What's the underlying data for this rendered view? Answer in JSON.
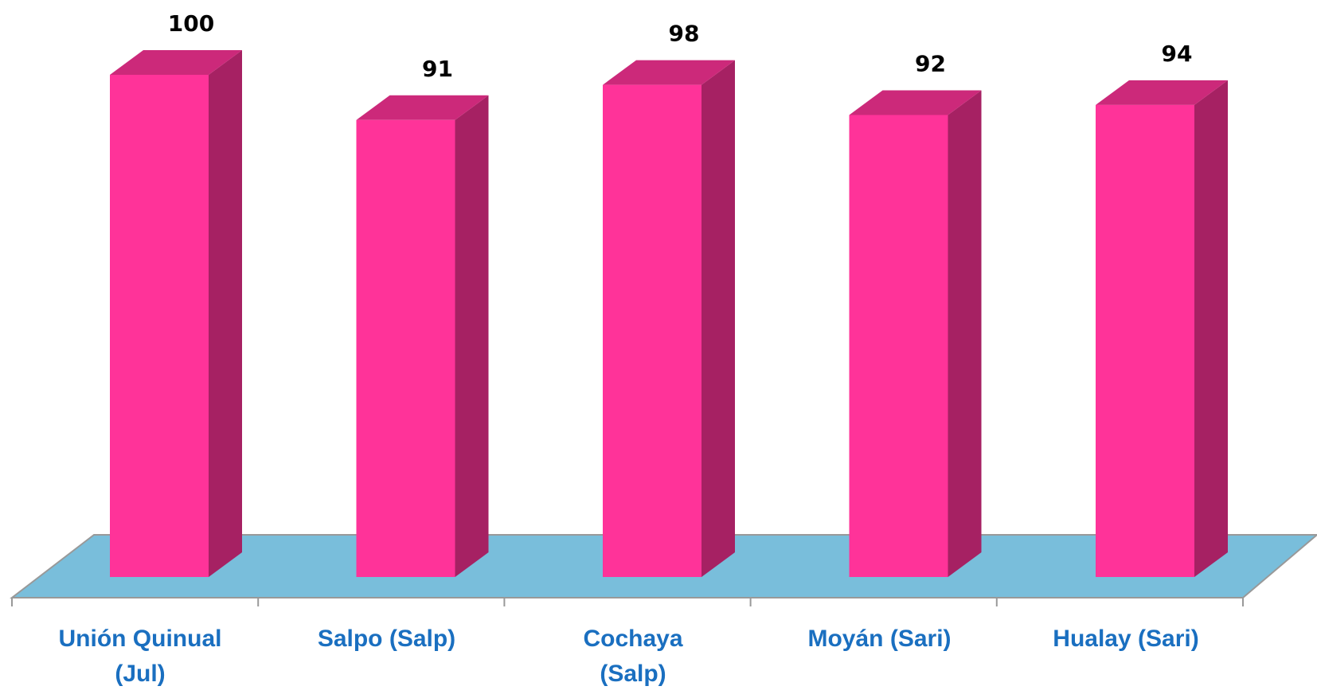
{
  "chart_data": {
    "type": "bar3d",
    "categories": [
      "Unión Quinual (Jul)",
      "Salpo (Salp)",
      "Cochaya (Salp)",
      "Moyán (Sari)",
      "Hualay (Sari)"
    ],
    "values": [
      100,
      91,
      98,
      92,
      94
    ],
    "color": "#ff3399"
  }
}
